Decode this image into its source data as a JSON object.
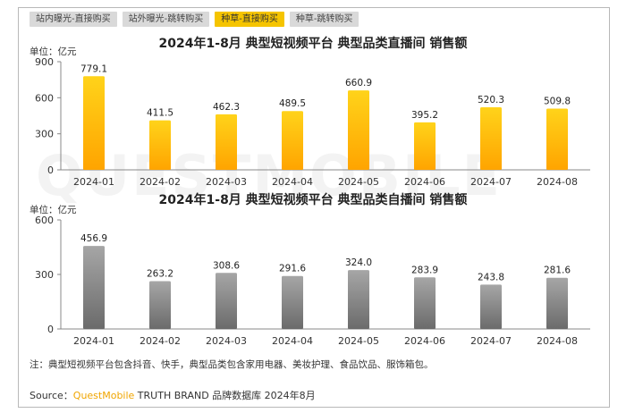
{
  "tabs": [
    {
      "label": "站内曝光-直接购买",
      "active": false
    },
    {
      "label": "站外曝光-跳转购买",
      "active": false
    },
    {
      "label": "种草-直接购买",
      "active": true
    },
    {
      "label": "种草-跳转购买",
      "active": false
    }
  ],
  "watermark": "QUESTMOBILE",
  "chart_data": [
    {
      "type": "bar",
      "title": "2024年1-8月 典型短视频平台 典型品类直播间 销售额",
      "unit": "单位：亿元",
      "categories": [
        "2024-01",
        "2024-02",
        "2024-03",
        "2024-04",
        "2024-05",
        "2024-06",
        "2024-07",
        "2024-08"
      ],
      "values": [
        779.1,
        411.5,
        462.3,
        489.5,
        660.9,
        395.2,
        520.3,
        509.8
      ],
      "ylim": [
        0,
        900
      ],
      "yticks": [
        0,
        300,
        600,
        900
      ],
      "color_top": "#ffd31a",
      "color_bottom": "#ffa400"
    },
    {
      "type": "bar",
      "title": "2024年1-8月 典型短视频平台 典型品类自播间 销售额",
      "unit": "单位：亿元",
      "categories": [
        "2024-01",
        "2024-02",
        "2024-03",
        "2024-04",
        "2024-05",
        "2024-06",
        "2024-07",
        "2024-08"
      ],
      "values": [
        456.9,
        263.2,
        308.6,
        291.6,
        324.0,
        283.9,
        243.8,
        281.6
      ],
      "ylim": [
        0,
        600
      ],
      "yticks": [
        0,
        300,
        600
      ],
      "color_top": "#a6a6a6",
      "color_bottom": "#6b6b6b"
    }
  ],
  "note": "注：典型短视频平台包含抖音、快手，典型品类包含家用电器、美妆护理、食品饮品、服饰箱包。",
  "source": {
    "prefix": "Source：",
    "brand": "QuestMobile",
    "suffix": " TRUTH BRAND 品牌数据库 2024年8月"
  }
}
